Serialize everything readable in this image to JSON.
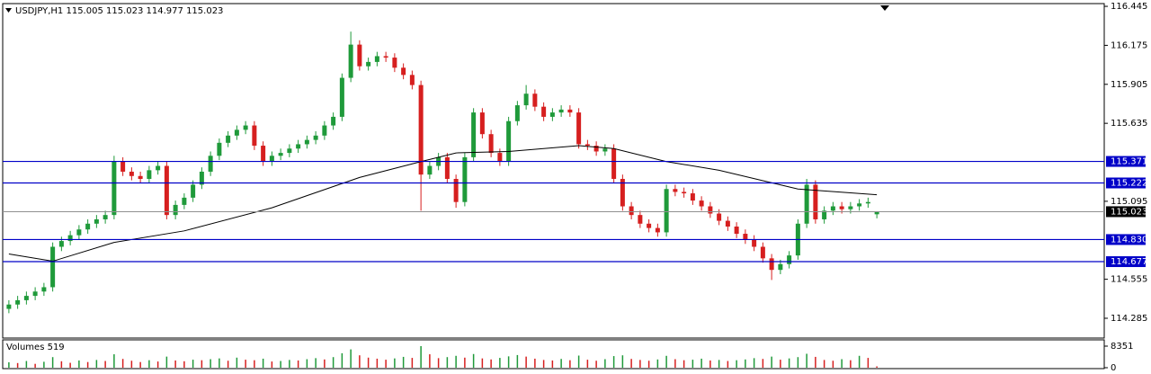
{
  "chart_data": {
    "type": "candlestick",
    "title": "USDJPY,H1  115.005 115.023 114.977 115.023",
    "up_color": "#1f9a3a",
    "down_color": "#d61f1f",
    "ylim": [
      114.148,
      116.464
    ],
    "yticks": [
      116.445,
      116.175,
      115.905,
      115.635,
      115.095,
      114.555,
      114.285
    ],
    "open": [
      114.35,
      114.38,
      114.41,
      114.44,
      114.47,
      114.5,
      114.78,
      114.82,
      114.86,
      114.9,
      114.94,
      114.97,
      115.0,
      115.37,
      115.3,
      115.27,
      115.25,
      115.31,
      115.34,
      115.0,
      115.07,
      115.12,
      115.21,
      115.3,
      115.41,
      115.5,
      115.55,
      115.59,
      115.62,
      115.48,
      115.37,
      115.41,
      115.43,
      115.46,
      115.49,
      115.52,
      115.55,
      115.62,
      115.68,
      115.95,
      116.18,
      116.03,
      116.06,
      116.1,
      116.09,
      116.02,
      115.97,
      115.9,
      115.28,
      115.34,
      115.4,
      115.25,
      115.09,
      115.4,
      115.71,
      115.56,
      115.43,
      115.37,
      115.65,
      115.76,
      115.84,
      115.75,
      115.68,
      115.71,
      115.73,
      115.71,
      115.49,
      115.48,
      115.44,
      115.46,
      115.25,
      115.06,
      115.0,
      114.94,
      114.91,
      114.88,
      115.18,
      115.16,
      115.15,
      115.1,
      115.06,
      115.01,
      114.96,
      114.92,
      114.87,
      114.83,
      114.78,
      114.7,
      114.62,
      114.66,
      114.72,
      114.94,
      115.21,
      114.97,
      115.03,
      115.06,
      115.04,
      115.06,
      115.08,
      115.005
    ],
    "high": [
      114.41,
      114.44,
      114.47,
      114.5,
      114.53,
      114.81,
      114.85,
      114.89,
      114.93,
      114.97,
      115.0,
      115.03,
      115.41,
      115.4,
      115.33,
      115.3,
      115.34,
      115.37,
      115.37,
      115.1,
      115.15,
      115.24,
      115.33,
      115.44,
      115.53,
      115.58,
      115.62,
      115.65,
      115.65,
      115.51,
      115.44,
      115.46,
      115.49,
      115.52,
      115.55,
      115.58,
      115.65,
      115.71,
      115.98,
      116.27,
      116.21,
      116.09,
      116.13,
      116.13,
      116.12,
      116.05,
      116.0,
      115.93,
      115.37,
      115.43,
      115.43,
      115.28,
      115.43,
      115.74,
      115.74,
      115.59,
      115.46,
      115.68,
      115.79,
      115.9,
      115.87,
      115.78,
      115.74,
      115.76,
      115.76,
      115.74,
      115.52,
      115.51,
      115.49,
      115.49,
      115.28,
      115.09,
      115.03,
      114.97,
      114.94,
      115.21,
      115.21,
      115.19,
      115.18,
      115.13,
      115.09,
      115.04,
      114.99,
      114.95,
      114.9,
      114.86,
      114.81,
      114.73,
      114.69,
      114.75,
      114.97,
      115.25,
      115.24,
      115.06,
      115.09,
      115.09,
      115.09,
      115.11,
      115.12,
      115.023
    ],
    "low": [
      114.32,
      114.35,
      114.38,
      114.41,
      114.44,
      114.47,
      114.75,
      114.79,
      114.83,
      114.87,
      114.91,
      114.94,
      114.97,
      115.27,
      115.24,
      115.22,
      115.22,
      115.28,
      114.97,
      114.97,
      115.04,
      115.09,
      115.18,
      115.27,
      115.38,
      115.47,
      115.52,
      115.56,
      115.45,
      115.34,
      115.34,
      115.38,
      115.4,
      115.43,
      115.46,
      115.49,
      115.52,
      115.59,
      115.65,
      115.92,
      116.0,
      116.0,
      116.03,
      116.06,
      115.99,
      115.94,
      115.87,
      115.03,
      115.25,
      115.31,
      115.22,
      115.05,
      115.06,
      115.37,
      115.53,
      115.4,
      115.34,
      115.34,
      115.62,
      115.73,
      115.72,
      115.65,
      115.65,
      115.68,
      115.68,
      115.46,
      115.45,
      115.41,
      115.41,
      115.22,
      115.03,
      114.97,
      114.91,
      114.88,
      114.85,
      114.85,
      115.13,
      115.12,
      115.07,
      115.03,
      114.98,
      114.93,
      114.89,
      114.84,
      114.8,
      114.75,
      114.67,
      114.55,
      114.59,
      114.63,
      114.69,
      114.91,
      114.94,
      114.94,
      115.0,
      115.01,
      115.01,
      115.03,
      115.05,
      114.977
    ],
    "close": [
      114.38,
      114.41,
      114.44,
      114.47,
      114.5,
      114.78,
      114.82,
      114.86,
      114.9,
      114.94,
      114.97,
      115.0,
      115.37,
      115.3,
      115.27,
      115.25,
      115.31,
      115.34,
      115.0,
      115.07,
      115.12,
      115.21,
      115.3,
      115.41,
      115.5,
      115.55,
      115.59,
      115.62,
      115.48,
      115.37,
      115.41,
      115.43,
      115.46,
      115.49,
      115.52,
      115.55,
      115.62,
      115.68,
      115.95,
      116.18,
      116.03,
      116.06,
      116.1,
      116.09,
      116.02,
      115.97,
      115.9,
      115.28,
      115.34,
      115.4,
      115.25,
      115.09,
      115.4,
      115.71,
      115.56,
      115.43,
      115.37,
      115.65,
      115.76,
      115.84,
      115.75,
      115.68,
      115.71,
      115.73,
      115.71,
      115.49,
      115.48,
      115.44,
      115.46,
      115.25,
      115.06,
      115.0,
      114.94,
      114.91,
      114.88,
      115.18,
      115.16,
      115.15,
      115.1,
      115.06,
      115.01,
      114.96,
      114.92,
      114.87,
      114.83,
      114.78,
      114.7,
      114.62,
      114.66,
      114.72,
      114.94,
      115.21,
      114.97,
      115.03,
      115.06,
      115.04,
      115.06,
      115.08,
      115.09,
      115.023
    ],
    "moving_average": {
      "color": "#000000",
      "x": [
        0,
        5,
        12,
        20,
        30,
        40,
        47,
        51,
        57,
        65,
        69,
        75,
        81,
        90,
        99
      ],
      "values": [
        114.73,
        114.68,
        114.81,
        114.89,
        115.05,
        115.26,
        115.37,
        115.43,
        115.44,
        115.48,
        115.46,
        115.37,
        115.31,
        115.18,
        115.14
      ]
    },
    "levels": [
      {
        "value": 115.371,
        "label": "115.371"
      },
      {
        "value": 115.222,
        "label": "115.222"
      },
      {
        "value": 114.83,
        "label": "114.830"
      },
      {
        "value": 114.677,
        "label": "114.677"
      }
    ],
    "level_color": "#0000c8",
    "current_price": 115.023,
    "volume_label": "Volumes 519",
    "vylim": [
      0,
      8351
    ],
    "vyticks": [
      8351,
      0
    ],
    "volume": [
      2100,
      1800,
      2600,
      1500,
      2300,
      4100,
      2500,
      1900,
      2800,
      2200,
      3000,
      2600,
      5200,
      3400,
      2700,
      2200,
      2900,
      2400,
      4300,
      2800,
      2500,
      3100,
      2900,
      3300,
      3600,
      2700,
      3900,
      3100,
      2900,
      3500,
      2400,
      2600,
      3000,
      2800,
      3300,
      3700,
      3200,
      4100,
      5600,
      7100,
      4800,
      3900,
      3500,
      3100,
      3600,
      4200,
      3800,
      8351,
      5200,
      3700,
      4100,
      4600,
      3900,
      5300,
      3600,
      3200,
      3800,
      4400,
      4900,
      4300,
      3500,
      3000,
      2800,
      3400,
      2900,
      4700,
      3100,
      2700,
      3300,
      4500,
      4800,
      3400,
      3000,
      2700,
      3200,
      4600,
      3300,
      2900,
      3100,
      3500,
      2800,
      3000,
      2600,
      2900,
      3200,
      3700,
      3400,
      4300,
      3100,
      3600,
      4100,
      5400,
      4200,
      3000,
      2700,
      3300,
      2900,
      4600,
      3800,
      519
    ]
  }
}
